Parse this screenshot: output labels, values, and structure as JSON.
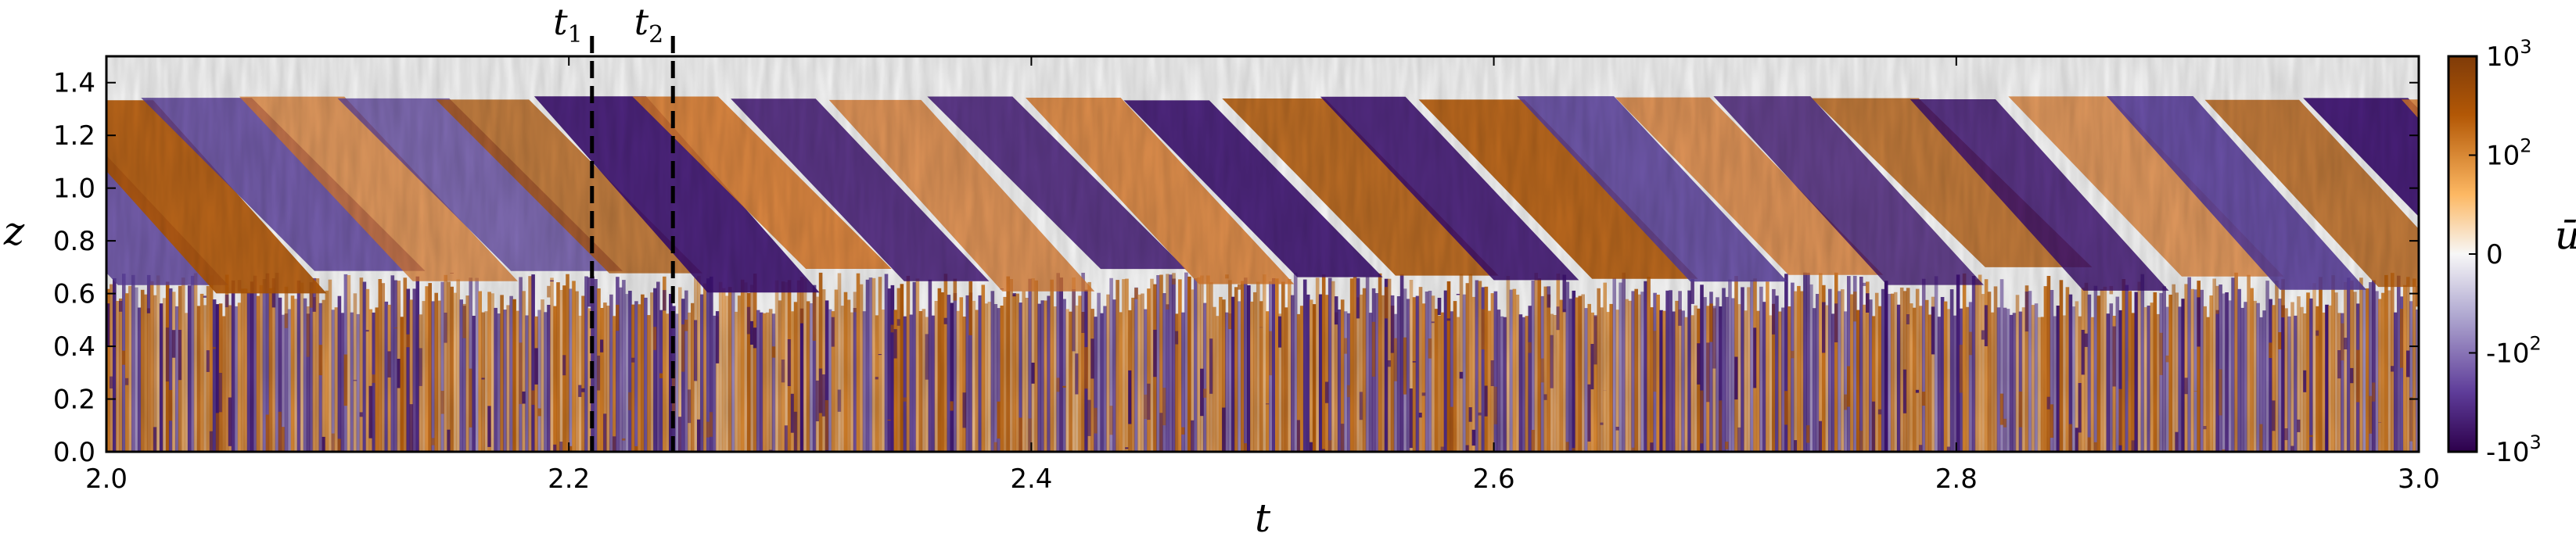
{
  "chart_data": {
    "type": "heatmap",
    "xlabel": "t",
    "ylabel": "z",
    "colorbar_label": "ū",
    "xlim": [
      2.0,
      3.0
    ],
    "ylim": [
      0.0,
      1.5
    ],
    "x_ticks": [
      {
        "value": 2.0,
        "label": "2.0"
      },
      {
        "value": 2.2,
        "label": "2.2"
      },
      {
        "value": 2.4,
        "label": "2.4"
      },
      {
        "value": 2.6,
        "label": "2.6"
      },
      {
        "value": 2.8,
        "label": "2.8"
      },
      {
        "value": 3.0,
        "label": "3.0"
      }
    ],
    "y_ticks": [
      {
        "value": 0.0,
        "label": "0.0"
      },
      {
        "value": 0.2,
        "label": "0.2"
      },
      {
        "value": 0.4,
        "label": "0.4"
      },
      {
        "value": 0.6,
        "label": "0.6"
      },
      {
        "value": 0.8,
        "label": "0.8"
      },
      {
        "value": 1.0,
        "label": "1.0"
      },
      {
        "value": 1.2,
        "label": "1.2"
      },
      {
        "value": 1.4,
        "label": "1.4"
      }
    ],
    "colorbar": {
      "scale": "symlog",
      "range": [
        -1000,
        1000
      ],
      "ticks": [
        {
          "value": 1000,
          "base": "10",
          "exp": "3",
          "sign": ""
        },
        {
          "value": 100,
          "base": "10",
          "exp": "2",
          "sign": ""
        },
        {
          "value": 0,
          "base": "0",
          "exp": "",
          "sign": ""
        },
        {
          "value": -100,
          "base": "10",
          "exp": "2",
          "sign": "-"
        },
        {
          "value": -1000,
          "base": "10",
          "exp": "3",
          "sign": "-"
        }
      ],
      "colors": {
        "negative": "#3b0f70",
        "zero": "#f7f7f7",
        "positive": "#b35806"
      }
    },
    "markers": [
      {
        "t": 2.21,
        "name": "t",
        "sub": "1"
      },
      {
        "t": 2.245,
        "name": "t",
        "sub": "2"
      }
    ],
    "grid": false
  }
}
